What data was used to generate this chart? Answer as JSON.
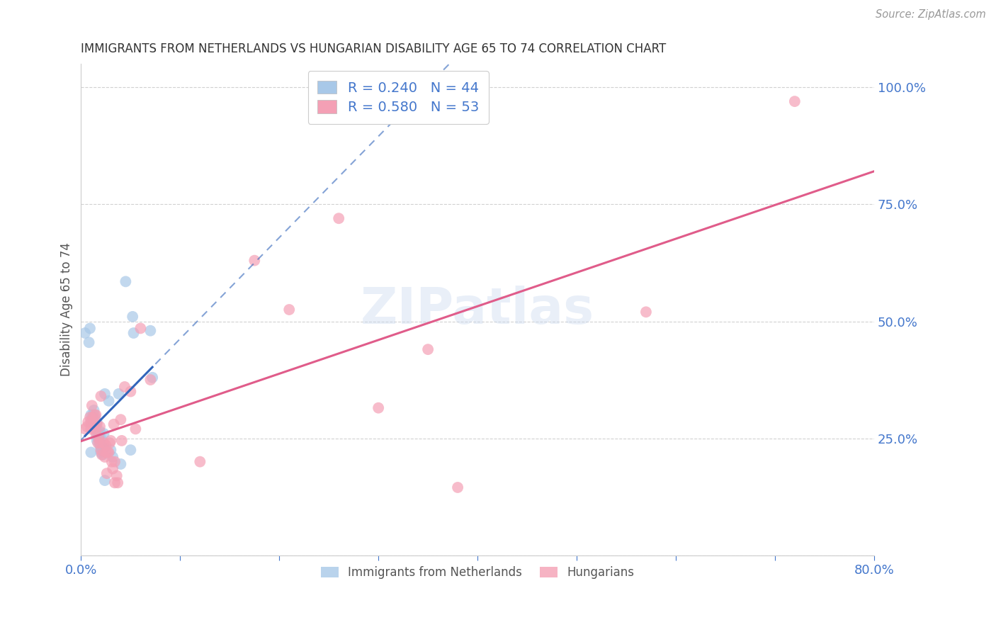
{
  "title": "IMMIGRANTS FROM NETHERLANDS VS HUNGARIAN DISABILITY AGE 65 TO 74 CORRELATION CHART",
  "source": "Source: ZipAtlas.com",
  "ylabel": "Disability Age 65 to 74",
  "legend_label1": "Immigrants from Netherlands",
  "legend_label2": "Hungarians",
  "r1": 0.24,
  "n1": 44,
  "r2": 0.58,
  "n2": 53,
  "color1": "#a8c8e8",
  "color2": "#f4a0b5",
  "trendline1_color": "#3366bb",
  "trendline2_color": "#e05c8a",
  "axis_label_color": "#4477cc",
  "watermark": "ZIPatlas",
  "xmin": 0.0,
  "xmax": 0.8,
  "ymin": 0.0,
  "ymax": 105.0,
  "x_ticks": [
    0.0,
    0.1,
    0.2,
    0.3,
    0.4,
    0.5,
    0.6,
    0.7,
    0.8
  ],
  "y_ticks": [
    0.0,
    25.0,
    50.0,
    75.0,
    100.0
  ],
  "blue_points": [
    [
      0.004,
      47.5
    ],
    [
      0.008,
      45.5
    ],
    [
      0.009,
      48.5
    ],
    [
      0.01,
      30.0
    ],
    [
      0.01,
      28.5
    ],
    [
      0.01,
      22.0
    ],
    [
      0.012,
      28.5
    ],
    [
      0.012,
      30.0
    ],
    [
      0.013,
      31.0
    ],
    [
      0.014,
      29.5
    ],
    [
      0.014,
      28.0
    ],
    [
      0.015,
      27.0
    ],
    [
      0.015,
      27.5
    ],
    [
      0.016,
      28.5
    ],
    [
      0.016,
      26.0
    ],
    [
      0.016,
      24.5
    ],
    [
      0.017,
      26.0
    ],
    [
      0.017,
      25.0
    ],
    [
      0.018,
      25.5
    ],
    [
      0.018,
      26.0
    ],
    [
      0.019,
      26.5
    ],
    [
      0.019,
      24.0
    ],
    [
      0.019,
      23.5
    ],
    [
      0.02,
      25.0
    ],
    [
      0.02,
      23.0
    ],
    [
      0.02,
      22.0
    ],
    [
      0.021,
      22.5
    ],
    [
      0.022,
      23.0
    ],
    [
      0.022,
      21.5
    ],
    [
      0.023,
      26.0
    ],
    [
      0.023,
      23.0
    ],
    [
      0.024,
      34.5
    ],
    [
      0.024,
      16.0
    ],
    [
      0.028,
      33.0
    ],
    [
      0.03,
      22.5
    ],
    [
      0.032,
      21.0
    ],
    [
      0.038,
      34.5
    ],
    [
      0.04,
      19.5
    ],
    [
      0.045,
      58.5
    ],
    [
      0.05,
      22.5
    ],
    [
      0.052,
      51.0
    ],
    [
      0.053,
      47.5
    ],
    [
      0.07,
      48.0
    ],
    [
      0.072,
      38.0
    ]
  ],
  "pink_points": [
    [
      0.004,
      27.0
    ],
    [
      0.006,
      27.5
    ],
    [
      0.007,
      28.5
    ],
    [
      0.009,
      29.5
    ],
    [
      0.01,
      28.5
    ],
    [
      0.01,
      27.0
    ],
    [
      0.011,
      32.0
    ],
    [
      0.012,
      29.5
    ],
    [
      0.013,
      28.0
    ],
    [
      0.013,
      27.0
    ],
    [
      0.014,
      30.0
    ],
    [
      0.015,
      30.0
    ],
    [
      0.015,
      26.0
    ],
    [
      0.016,
      28.0
    ],
    [
      0.017,
      24.0
    ],
    [
      0.018,
      25.0
    ],
    [
      0.019,
      27.5
    ],
    [
      0.019,
      24.0
    ],
    [
      0.02,
      34.0
    ],
    [
      0.02,
      22.5
    ],
    [
      0.021,
      21.5
    ],
    [
      0.023,
      24.0
    ],
    [
      0.024,
      21.0
    ],
    [
      0.025,
      23.5
    ],
    [
      0.025,
      22.0
    ],
    [
      0.026,
      17.5
    ],
    [
      0.027,
      22.0
    ],
    [
      0.028,
      22.0
    ],
    [
      0.029,
      24.0
    ],
    [
      0.03,
      24.5
    ],
    [
      0.031,
      20.0
    ],
    [
      0.032,
      18.5
    ],
    [
      0.033,
      28.0
    ],
    [
      0.034,
      20.0
    ],
    [
      0.034,
      15.5
    ],
    [
      0.036,
      17.0
    ],
    [
      0.037,
      15.5
    ],
    [
      0.04,
      29.0
    ],
    [
      0.041,
      24.5
    ],
    [
      0.044,
      36.0
    ],
    [
      0.05,
      35.0
    ],
    [
      0.055,
      27.0
    ],
    [
      0.06,
      48.5
    ],
    [
      0.07,
      37.5
    ],
    [
      0.12,
      20.0
    ],
    [
      0.175,
      63.0
    ],
    [
      0.21,
      52.5
    ],
    [
      0.26,
      72.0
    ],
    [
      0.3,
      31.5
    ],
    [
      0.35,
      44.0
    ],
    [
      0.38,
      14.5
    ],
    [
      0.57,
      52.0
    ],
    [
      0.72,
      97.0
    ]
  ]
}
